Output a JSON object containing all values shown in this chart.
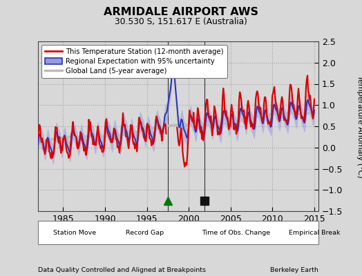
{
  "title": "ARMIDALE AIRPORT AWS",
  "subtitle": "30.530 S, 151.617 E (Australia)",
  "ylabel": "Temperature Anomaly (°C)",
  "xlim": [
    1982.0,
    2015.5
  ],
  "ylim": [
    -1.5,
    2.5
  ],
  "yticks": [
    -1.5,
    -1.0,
    -0.5,
    0.0,
    0.5,
    1.0,
    1.5,
    2.0,
    2.5
  ],
  "xticks": [
    1985,
    1990,
    1995,
    2000,
    2005,
    2010,
    2015
  ],
  "bg_color": "#d8d8d8",
  "plot_bg_color": "#d8d8d8",
  "station_color": "#dd0000",
  "regional_color": "#2233bb",
  "regional_fill": "#9999dd",
  "global_color": "#bbbbbb",
  "vline_color": "#333333",
  "record_gap_x": 1997.5,
  "record_gap_color": "#007700",
  "empirical_break_x": 2001.9,
  "empirical_break_color": "#111111",
  "footer_left": "Data Quality Controlled and Aligned at Breakpoints",
  "footer_right": "Berkeley Earth",
  "legend_line1": "This Temperature Station (12-month average)",
  "legend_line2": "Regional Expectation with 95% uncertainty",
  "legend_line3": "Global Land (5-year average)",
  "marker_legend": [
    {
      "label": "Station Move",
      "marker": "D",
      "color": "#cc0000"
    },
    {
      "label": "Record Gap",
      "marker": "^",
      "color": "#007700"
    },
    {
      "label": "Time of Obs. Change",
      "marker": "v",
      "color": "#2233bb"
    },
    {
      "label": "Empirical Break",
      "marker": "s",
      "color": "#111111"
    }
  ]
}
